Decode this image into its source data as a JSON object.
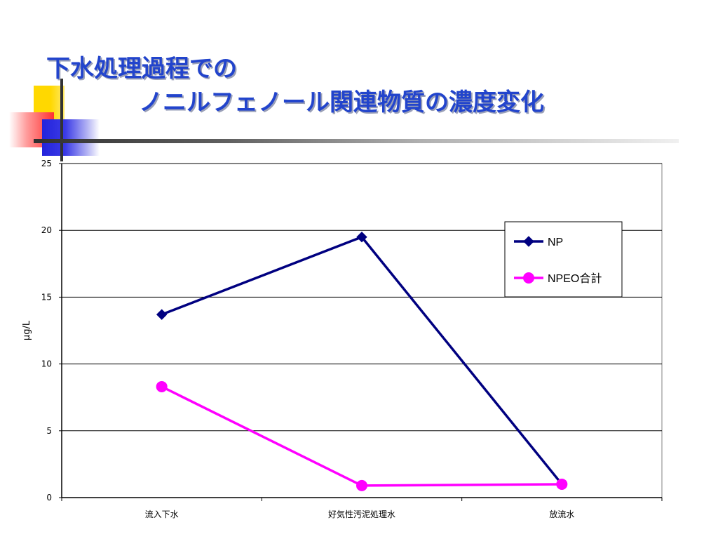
{
  "slide": {
    "title_line1": "下水処理過程での",
    "title_line2": "ノニルフェノール関連物質の濃度変化"
  },
  "colors": {
    "title": "#2244cc",
    "np": "#000080",
    "npeo": "#ff00ff"
  },
  "chart_data": {
    "type": "line",
    "categories": [
      "流入下水",
      "好気性汚泥処理水",
      "放流水"
    ],
    "series": [
      {
        "name": "NP",
        "values": [
          13.7,
          19.5,
          1.0
        ],
        "marker": "diamond",
        "color": "#000080"
      },
      {
        "name": "NPEO合計",
        "values": [
          8.3,
          0.9,
          1.0
        ],
        "marker": "circle",
        "color": "#ff00ff"
      }
    ],
    "ylabel": "μg/L",
    "ylim": [
      0,
      25
    ],
    "yticks": [
      "0",
      "5",
      "10",
      "15",
      "20",
      "25"
    ],
    "grid": true,
    "legend": "top-right"
  }
}
